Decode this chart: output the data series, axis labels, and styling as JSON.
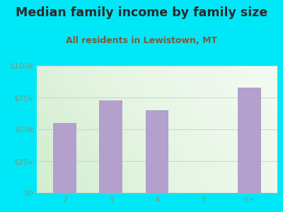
{
  "title": "Median family income by family size",
  "subtitle": "All residents in Lewistown, MT",
  "categories": [
    "2",
    "3",
    "4",
    "5",
    "6+"
  ],
  "values": [
    55000,
    73000,
    65000,
    0,
    83000
  ],
  "bar_color": "#b3a0cc",
  "background_outer": "#00e8f8",
  "title_color": "#2b2b2b",
  "subtitle_color": "#7a5c3c",
  "tick_label_color": "#7a9a7a",
  "ylim": [
    0,
    100000
  ],
  "yticks": [
    0,
    25000,
    50000,
    75000,
    100000
  ],
  "ytick_labels": [
    "$0",
    "$25k",
    "$50k",
    "$75k",
    "$100k"
  ],
  "title_fontsize": 12.5,
  "subtitle_fontsize": 9,
  "tick_fontsize": 8
}
